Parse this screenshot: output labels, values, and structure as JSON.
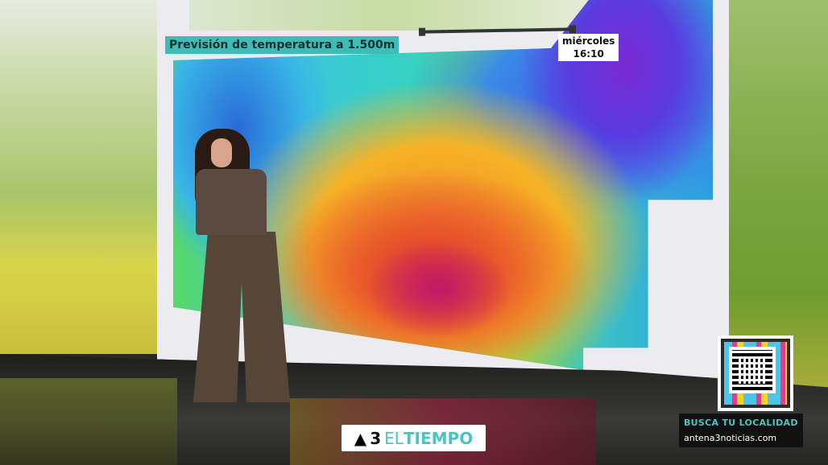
{
  "map": {
    "title": "Previsión de temperatura a 1.500m",
    "day": "miércoles",
    "time": "16:10"
  },
  "branding": {
    "logo_number": "3",
    "logo_el": "EL",
    "logo_tiempo": "TIEMPO"
  },
  "cta": {
    "line1": "BUSCA TU LOCALIDAD",
    "line2": "antena3noticias.com"
  },
  "colors": {
    "accent": "#49c5c2",
    "title_bg": "#3fbcb8"
  }
}
